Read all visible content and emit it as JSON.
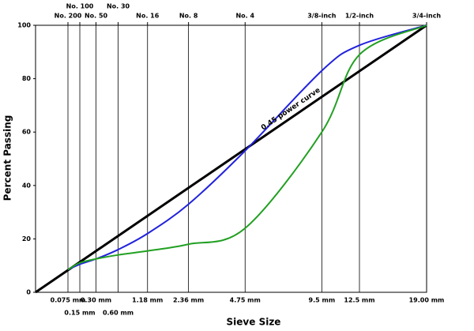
{
  "chart_data": {
    "type": "line",
    "xlabel": "Sieve Size",
    "ylabel": "Percent Passing",
    "annotation": "0.45 power curve",
    "xscale_power": 0.45,
    "xlim": [
      0,
      19
    ],
    "ylim": [
      0,
      100
    ],
    "yticks": [
      0,
      20,
      40,
      60,
      80,
      100
    ],
    "xticks": [
      {
        "value": 0.075,
        "label": "0.075 mm"
      },
      {
        "value": 0.15,
        "label": "0.15 mm"
      },
      {
        "value": 0.3,
        "label": "0.30 mm"
      },
      {
        "value": 0.6,
        "label": "0.60 mm"
      },
      {
        "value": 1.18,
        "label": "1.18 mm"
      },
      {
        "value": 2.36,
        "label": "2.36 mm"
      },
      {
        "value": 4.75,
        "label": "4.75 mm"
      },
      {
        "value": 9.5,
        "label": "9.5 mm"
      },
      {
        "value": 12.5,
        "label": "12.5 mm"
      },
      {
        "value": 19,
        "label": "19.00 mm"
      }
    ],
    "x2ticks": [
      {
        "value": 0.075,
        "label": "No. 200"
      },
      {
        "value": 0.15,
        "label": "No. 100"
      },
      {
        "value": 0.3,
        "label": "No. 50"
      },
      {
        "value": 0.6,
        "label": "No. 30"
      },
      {
        "value": 1.18,
        "label": "No. 16"
      },
      {
        "value": 2.36,
        "label": "No. 8"
      },
      {
        "value": 4.75,
        "label": "No. 4"
      },
      {
        "value": 9.5,
        "label": "3/8-inch"
      },
      {
        "value": 12.5,
        "label": "1/2-inch"
      },
      {
        "value": 19,
        "label": "3/4-inch"
      }
    ],
    "series": [
      {
        "color": "#000000",
        "x": [
          0,
          19
        ],
        "values": [
          0,
          100
        ]
      },
      {
        "color": "#2222dd",
        "x": [
          0.075,
          0.15,
          0.3,
          0.6,
          1.18,
          2.36,
          4.75,
          9.5,
          12.5,
          19
        ],
        "values": [
          8.5,
          10.5,
          12.5,
          16,
          22,
          33,
          53,
          83,
          92.5,
          100
        ]
      },
      {
        "color": "#22a022",
        "x": [
          0.075,
          0.15,
          0.3,
          0.6,
          1.18,
          2.36,
          4.75,
          9.5,
          12.5,
          19
        ],
        "values": [
          8.5,
          11,
          12.5,
          14,
          15.5,
          18,
          24,
          60,
          89,
          100
        ]
      }
    ]
  }
}
